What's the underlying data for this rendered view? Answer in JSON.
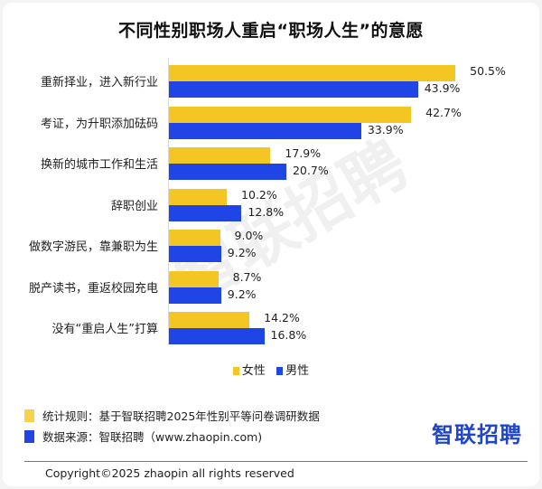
{
  "title": "不同性别职场人重启“职场人生”的意愿",
  "watermark": "智联招聘",
  "colors": {
    "female": "#f3c623",
    "male": "#1f45e6"
  },
  "legend": {
    "female": "女性",
    "male": "男性"
  },
  "rows": [
    {
      "label": "重新择业，进入新行业",
      "female": "50.5%",
      "male": "43.9%"
    },
    {
      "label": "考证，为升职添加砝码",
      "female": "42.7%",
      "male": "33.9%"
    },
    {
      "label": "换新的城市工作和生活",
      "female": "17.9%",
      "male": "20.7%"
    },
    {
      "label": "辞职创业",
      "female": "10.2%",
      "male": "12.8%"
    },
    {
      "label": "做数字游民，靠兼职为生",
      "female": "9.0%",
      "male": "9.2%"
    },
    {
      "label": "脱产读书，重返校园充电",
      "female": "8.7%",
      "male": "9.2%"
    },
    {
      "label": "没有“重启人生”打算",
      "female": "14.2%",
      "male": "16.8%"
    }
  ],
  "notes": {
    "rule": "统计规则：基于智联招聘2025年性别平等问卷调研数据",
    "source": "数据来源：智联招聘（www.zhaopin.com)"
  },
  "logo": {
    "first": "智",
    "rest": "联招聘"
  },
  "copyright": "Copyright©2025 zhaopin all rights reserved",
  "chart_data": {
    "type": "bar",
    "orientation": "horizontal",
    "title": "不同性别职场人重启“职场人生”的意愿",
    "categories": [
      "重新择业，进入新行业",
      "考证，为升职添加砝码",
      "换新的城市工作和生活",
      "辞职创业",
      "做数字游民，靠兼职为生",
      "脱产读书，重返校园充电",
      "没有“重启人生”打算"
    ],
    "series": [
      {
        "name": "女性",
        "color": "#f3c623",
        "values": [
          50.5,
          42.7,
          17.9,
          10.2,
          9.0,
          8.7,
          14.2
        ]
      },
      {
        "name": "男性",
        "color": "#1f45e6",
        "values": [
          43.9,
          33.9,
          20.7,
          12.8,
          9.2,
          9.2,
          16.8
        ]
      }
    ],
    "xlabel": "",
    "ylabel": "",
    "unit": "%",
    "legend_position": "bottom",
    "grid": false
  }
}
